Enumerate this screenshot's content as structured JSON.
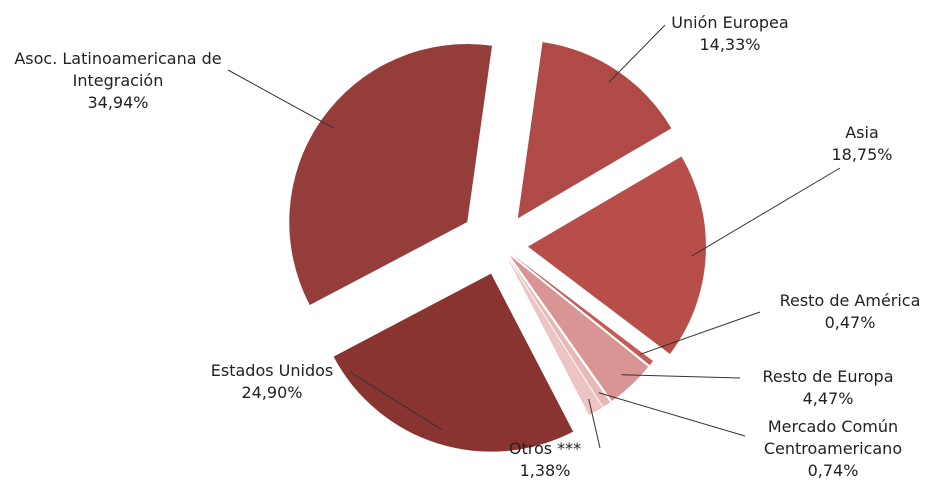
{
  "chart_data": {
    "type": "pie",
    "categories": [
      "Unión Europea",
      "Asia",
      "Resto de América",
      "Resto de Europa",
      "Mercado Común Centroamericano",
      "Otros ***",
      "Estados Unidos",
      "Asoc. Latinoamericana de Integración"
    ],
    "values": [
      14.33,
      18.75,
      0.47,
      4.47,
      0.74,
      1.38,
      24.9,
      34.94
    ],
    "value_labels": [
      "14,33%",
      "18,75%",
      "0,47%",
      "4,47%",
      "0,74%",
      "1,38%",
      "24,90%",
      "34,94%"
    ],
    "colors": [
      "#b04a47",
      "#b84e4a",
      "#c65a57",
      "#d99593",
      "#e6b8b7",
      "#ebc4c3",
      "#8a3432",
      "#953d3b"
    ]
  }
}
